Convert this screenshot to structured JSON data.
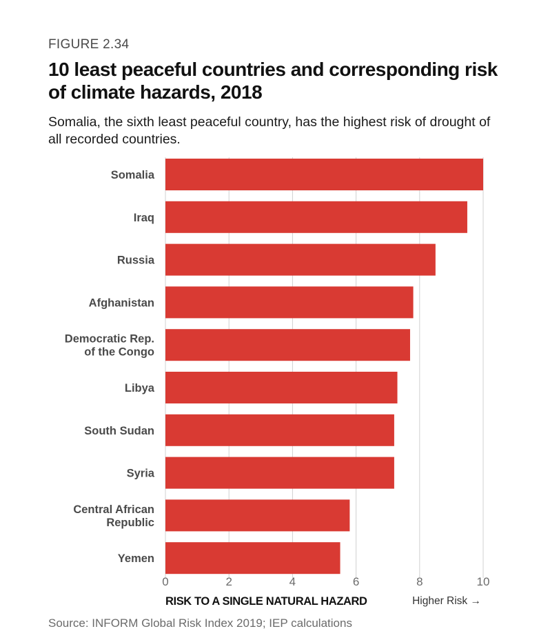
{
  "figure_label": "FIGURE 2.34",
  "title": "10 least peaceful countries and corresponding risk of climate hazards, 2018",
  "subtitle": "Somalia, the sixth least peaceful country, has the highest risk of drought of all recorded countries.",
  "source": "Source: INFORM Global Risk Index 2019; IEP calculations",
  "colors": {
    "bar": "#d93a33",
    "grid": "#d0d0d0",
    "label": "#4a4a4a",
    "tick": "#6b6b6b"
  },
  "chart_data": {
    "type": "bar",
    "orientation": "horizontal",
    "categories": [
      [
        "Somalia"
      ],
      [
        "Iraq"
      ],
      [
        "Russia"
      ],
      [
        "Afghanistan"
      ],
      [
        "Democratic Rep.",
        "of the Congo"
      ],
      [
        "Libya"
      ],
      [
        "South Sudan"
      ],
      [
        "Syria"
      ],
      [
        "Central African",
        "Republic"
      ],
      [
        "Yemen"
      ]
    ],
    "values": [
      10.0,
      9.5,
      8.5,
      7.8,
      7.7,
      7.3,
      7.2,
      7.2,
      5.8,
      5.5
    ],
    "xlim": [
      0,
      10
    ],
    "xticks": [
      0,
      2,
      4,
      6,
      8,
      10
    ],
    "xlabel": "RISK TO A SINGLE NATURAL HAZARD",
    "xlabel_note": "Higher Risk →",
    "grid": true
  }
}
